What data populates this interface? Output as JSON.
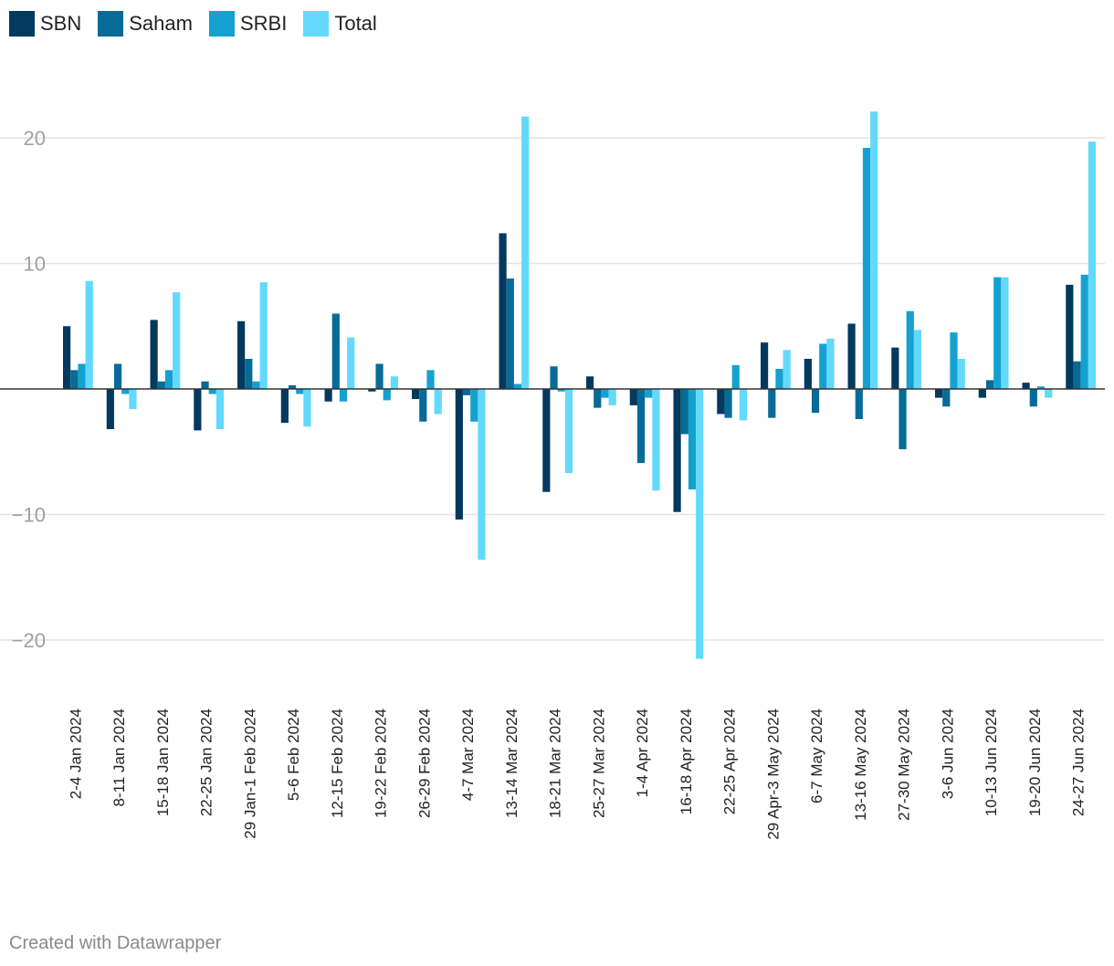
{
  "legend": [
    {
      "name": "SBN",
      "color": "#04395e"
    },
    {
      "name": "Saham",
      "color": "#066b96"
    },
    {
      "name": "SRBI",
      "color": "#15a1d0"
    },
    {
      "name": "Total",
      "color": "#63d9fc"
    }
  ],
  "credit": "Created with Datawrapper",
  "chart_data": {
    "type": "bar",
    "title": "",
    "xlabel": "",
    "ylabel": "",
    "ylim": [
      -25,
      25
    ],
    "yticks": [
      20,
      10,
      -10,
      -20
    ],
    "ytick_labels": [
      "20",
      "10",
      "−10",
      "−20"
    ],
    "categories": [
      "2-4 Jan 2024",
      "8-11 Jan 2024",
      "15-18 Jan 2024",
      "22-25 Jan 2024",
      "29 Jan-1 Feb 2024",
      "5-6 Feb 2024",
      "12-15 Feb 2024",
      "19-22 Feb 2024",
      "26-29 Feb 2024",
      "4-7 Mar 2024",
      "13-14 Mar 2024",
      "18-21 Mar 2024",
      "25-27 Mar 2024",
      "1-4 Apr 2024",
      "16-18 Apr 2024",
      "22-25 Apr 2024",
      "29 Apr-3 May 2024",
      "6-7 May 2024",
      "13-16 May 2024",
      "27-30 May 2024",
      "3-6 Jun 2024",
      "10-13 Jun 2024",
      "19-20 Jun 2024",
      "24-27 Jun 2024"
    ],
    "series": [
      {
        "name": "SBN",
        "color": "#04395e",
        "values": [
          5.0,
          -3.2,
          5.5,
          -3.3,
          5.4,
          -2.7,
          -1.0,
          -0.2,
          -0.8,
          -10.4,
          12.4,
          -8.2,
          1.0,
          -1.3,
          -9.8,
          -2.0,
          3.7,
          2.4,
          5.2,
          3.3,
          -0.7,
          -0.7,
          0.5,
          8.3
        ]
      },
      {
        "name": "Saham",
        "color": "#066b96",
        "values": [
          1.5,
          2.0,
          0.6,
          0.6,
          2.4,
          0.3,
          6.0,
          2.0,
          -2.6,
          -0.5,
          8.8,
          1.8,
          -1.5,
          -5.9,
          -3.6,
          -2.3,
          -2.3,
          -1.9,
          -2.4,
          -4.8,
          -1.4,
          0.7,
          -1.4,
          2.2
        ]
      },
      {
        "name": "SRBI",
        "color": "#15a1d0",
        "values": [
          2.0,
          -0.4,
          1.5,
          -0.4,
          0.6,
          -0.4,
          -1.0,
          -0.9,
          1.5,
          -2.6,
          0.4,
          -0.2,
          -0.7,
          -0.7,
          -8.0,
          1.9,
          1.6,
          3.6,
          19.2,
          6.2,
          4.5,
          8.9,
          0.2,
          9.1
        ]
      },
      {
        "name": "Total",
        "color": "#63d9fc",
        "values": [
          8.6,
          -1.6,
          7.7,
          -3.2,
          8.5,
          -3.0,
          4.1,
          1.0,
          -2.0,
          -13.6,
          21.7,
          -6.7,
          -1.3,
          -8.1,
          -21.5,
          -2.5,
          3.1,
          4.0,
          22.1,
          4.7,
          2.4,
          8.9,
          -0.7,
          19.7
        ]
      }
    ]
  }
}
